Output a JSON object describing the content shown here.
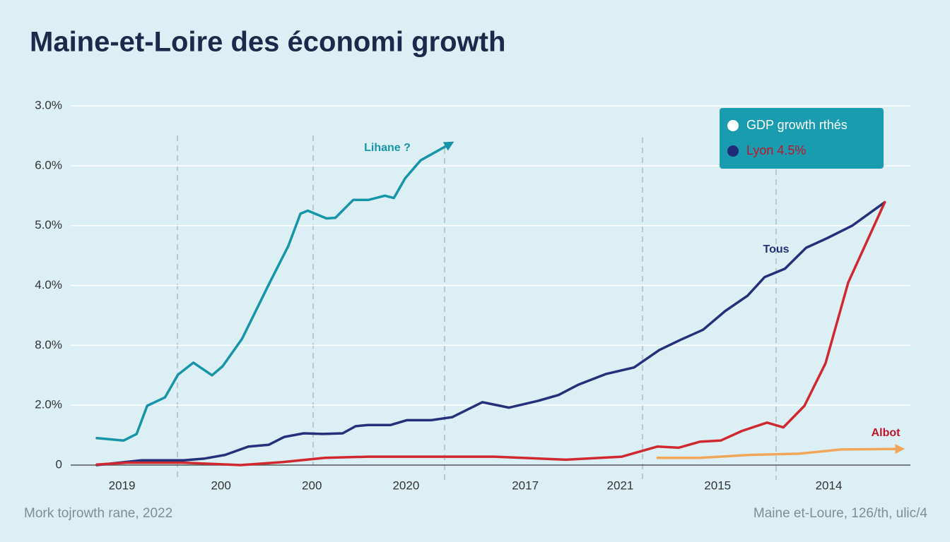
{
  "chart_data": {
    "type": "line",
    "title": "Maine-et-Loire des économi growth",
    "footer_left": "Mork tojrowth rane, 2022",
    "footer_right": "Maine et-Loure, 126/th, ulic/4",
    "xlim": [
      0,
      100
    ],
    "xticks": [
      {
        "value": 3.1,
        "label": "2019"
      },
      {
        "value": 15.3,
        "label": "200"
      },
      {
        "value": 26.5,
        "label": "200"
      },
      {
        "value": 38.1,
        "label": "2020"
      },
      {
        "value": 52.8,
        "label": "2017"
      },
      {
        "value": 64.5,
        "label": "2021"
      },
      {
        "value": 76.5,
        "label": "2015"
      },
      {
        "value": 90.2,
        "label": "2014"
      }
    ],
    "ylim": [
      0,
      6
    ],
    "yticks": [
      0,
      {
        "value": 1,
        "label": "2.0%"
      },
      {
        "value": 2,
        "label": "8.0%"
      },
      {
        "value": 3,
        "label": "4.0%"
      },
      {
        "value": 4,
        "label": "5.0%"
      },
      {
        "value": 5,
        "label": "6.0%"
      },
      {
        "value": 6,
        "label": "3.0%"
      }
    ],
    "grid": true,
    "legend": [
      {
        "label": "GDP growth rthés",
        "color": "#ffffff",
        "text_color": "#ffffff"
      },
      {
        "label": "Lyon 4.5%",
        "color": "#1f2a78",
        "text_color": "#c0142b"
      }
    ],
    "series": [
      {
        "name": "Lihane ?",
        "color": "#1694a8",
        "x": [
          0,
          3.3,
          4.9,
          6.2,
          8.4,
          10.0,
          11.9,
          14.2,
          15.5,
          17.9,
          21.2,
          23.6,
          25.1,
          26.0,
          28.3,
          29.4,
          31.6,
          33.5,
          35.5,
          36.6,
          38.0,
          39.9,
          43.6
        ],
        "values": [
          0.45,
          0.41,
          0.52,
          0.99,
          1.13,
          1.51,
          1.71,
          1.5,
          1.65,
          2.11,
          3.02,
          3.66,
          4.2,
          4.25,
          4.12,
          4.13,
          4.43,
          4.43,
          4.5,
          4.46,
          4.79,
          5.09,
          5.37
        ]
      },
      {
        "name": "Tous",
        "color": "#25307a",
        "x": [
          0,
          5.5,
          10.7,
          13.3,
          15.8,
          18.7,
          21.2,
          23.1,
          25.5,
          27.9,
          30.3,
          31.9,
          33.4,
          36.2,
          38.2,
          41.2,
          43.8,
          47.5,
          50.8,
          54.3,
          56.9,
          59.3,
          62.7,
          66.2,
          69.3,
          71.9,
          74.7,
          77.4,
          80.2,
          82.3,
          84.8,
          87.4,
          90.0,
          93.1,
          97.1
        ],
        "values": [
          0,
          0.08,
          0.08,
          0.11,
          0.17,
          0.31,
          0.34,
          0.47,
          0.53,
          0.52,
          0.53,
          0.65,
          0.67,
          0.67,
          0.75,
          0.75,
          0.8,
          1.05,
          0.96,
          1.07,
          1.17,
          1.34,
          1.52,
          1.63,
          1.92,
          2.09,
          2.26,
          2.57,
          2.83,
          3.14,
          3.28,
          3.63,
          3.79,
          4.0,
          4.39
        ]
      },
      {
        "color": "#d0282f",
        "x": [
          0,
          3.7,
          10.7,
          17.7,
          22.9,
          28.1,
          33.4,
          49.0,
          57.8,
          64.7,
          66.5,
          69.1,
          71.7,
          74.3,
          76.9,
          79.5,
          82.6,
          84.6,
          87.2,
          89.8,
          92.6,
          97.1
        ],
        "values": [
          0.01,
          0.04,
          0.04,
          0,
          0.05,
          0.12,
          0.14,
          0.14,
          0.09,
          0.14,
          0.21,
          0.31,
          0.29,
          0.39,
          0.41,
          0.57,
          0.71,
          0.63,
          0.99,
          1.7,
          3.05,
          4.39
        ]
      },
      {
        "name": "Albot",
        "color": "#f2a65a",
        "x": [
          69.1,
          74.3,
          80.4,
          86.5,
          91.7,
          99.1
        ],
        "values": [
          0.12,
          0.12,
          0.17,
          0.19,
          0.26,
          0.27
        ]
      }
    ]
  }
}
